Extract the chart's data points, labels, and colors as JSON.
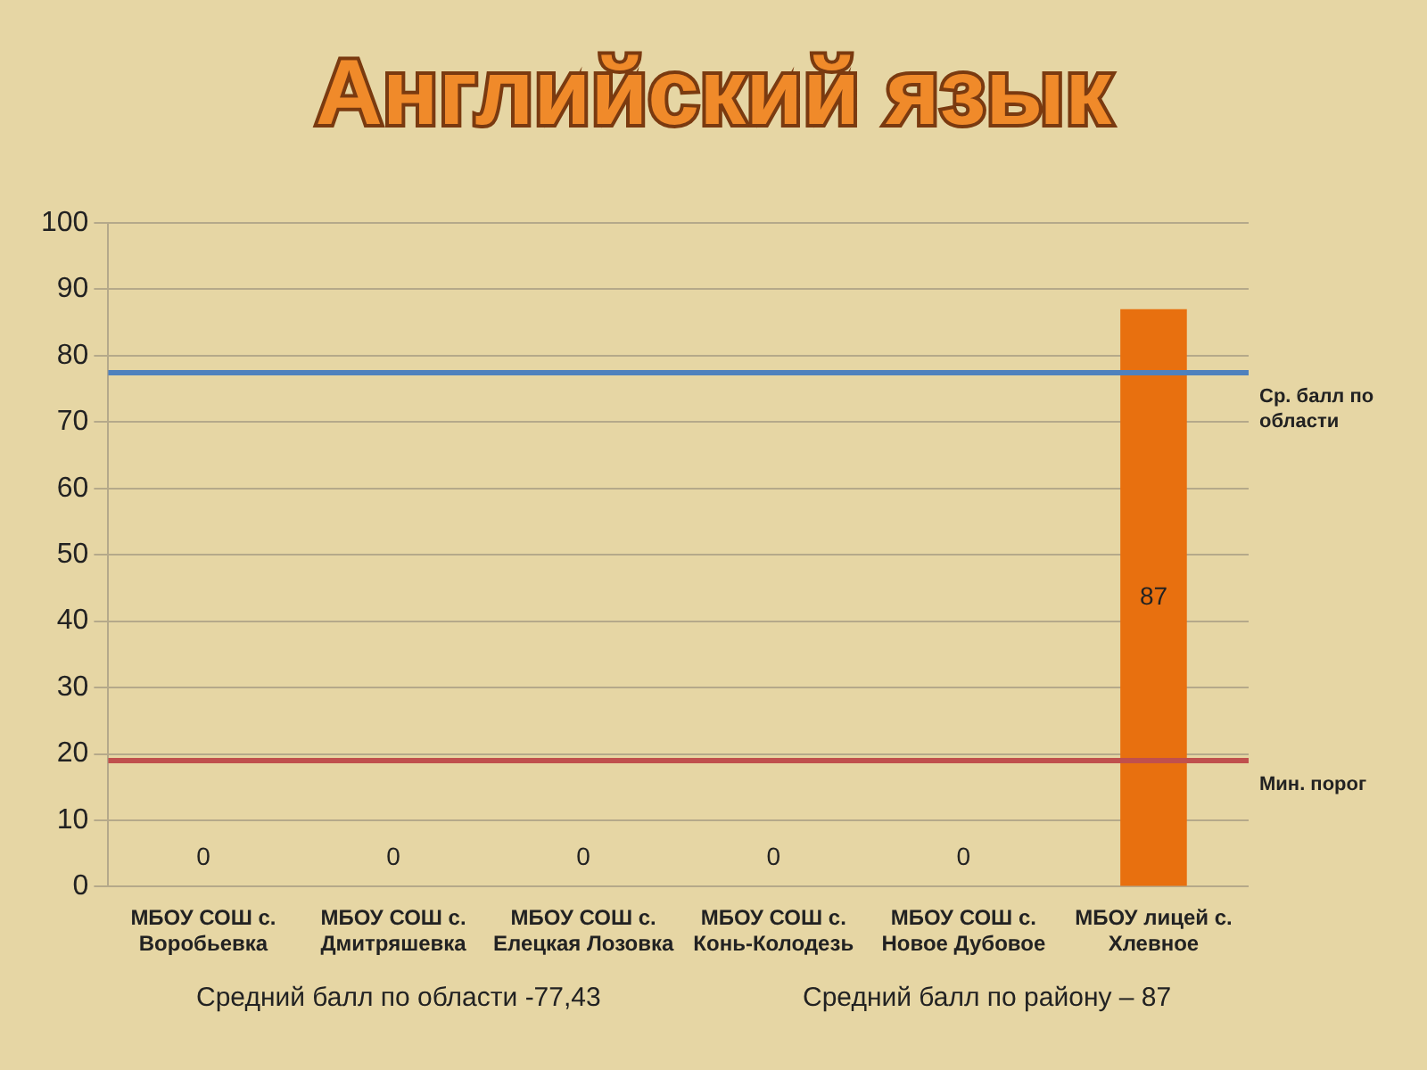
{
  "chart_data": {
    "type": "bar",
    "title": "Английский язык",
    "categories": [
      "МБОУ СОШ с. Воробьевка",
      "МБОУ СОШ с. Дмитряшевка",
      "МБОУ СОШ с. Елецкая Лозовка",
      "МБОУ СОШ с. Конь-Колодезь",
      "МБОУ СОШ с. Новое Дубовое",
      "МБОУ лицей с. Хлевное"
    ],
    "values": [
      0,
      0,
      0,
      0,
      0,
      87
    ],
    "color": "#e8700f",
    "data_labels": true,
    "ylim": [
      0,
      100
    ],
    "yticks": [
      0,
      10,
      20,
      30,
      40,
      50,
      60,
      70,
      80,
      90,
      100
    ],
    "grid": "y",
    "legend": false,
    "ref_lines": [
      {
        "axis": "y",
        "value": 77.43,
        "label": "Ср. балл по области",
        "color": "#4f81bd"
      },
      {
        "axis": "y",
        "value": 19,
        "label": "Мин. порог",
        "color": "#c0504d"
      }
    ],
    "annotations": [
      "Средний балл по области -77,43",
      "Средний балл по району – 87"
    ]
  }
}
